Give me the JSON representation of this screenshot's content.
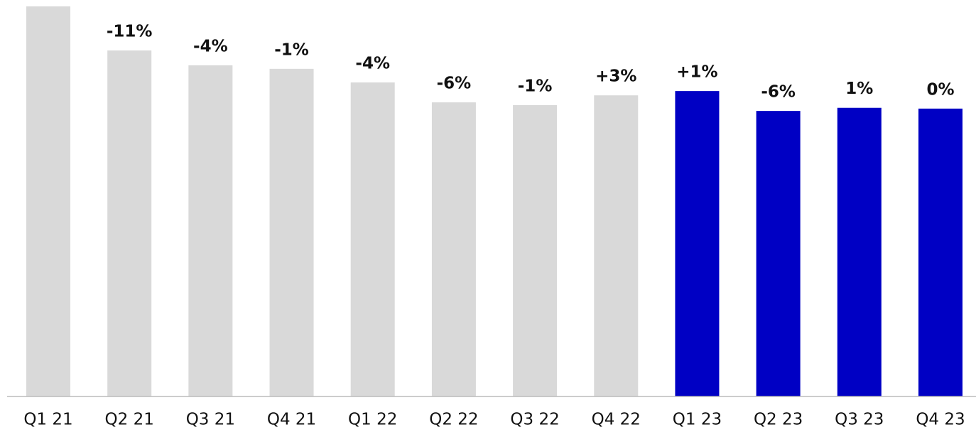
{
  "chart_data": {
    "type": "bar",
    "categories": [
      "Q1 21",
      "Q2 21",
      "Q3 21",
      "Q4 21",
      "Q1 22",
      "Q2 22",
      "Q3 22",
      "Q4 22",
      "Q1 23",
      "Q2 23",
      "Q3 23",
      "Q4 23"
    ],
    "values": [
      100,
      88.7,
      84.9,
      84.0,
      80.5,
      75.4,
      74.7,
      77.2,
      78.3,
      73.2,
      74.0,
      73.8
    ],
    "annotations": [
      null,
      "-11%",
      "-4%",
      "-1%",
      "-4%",
      "-6%",
      "-1%",
      "+3%",
      "+1%",
      "-6%",
      "1%",
      "0%"
    ],
    "colors": [
      "#d9d9d9",
      "#d9d9d9",
      "#d9d9d9",
      "#d9d9d9",
      "#d9d9d9",
      "#d9d9d9",
      "#d9d9d9",
      "#d9d9d9",
      "#0000c4",
      "#0000c4",
      "#0000c4",
      "#0000c4"
    ],
    "ylim": [
      0,
      100
    ],
    "grid": false
  }
}
